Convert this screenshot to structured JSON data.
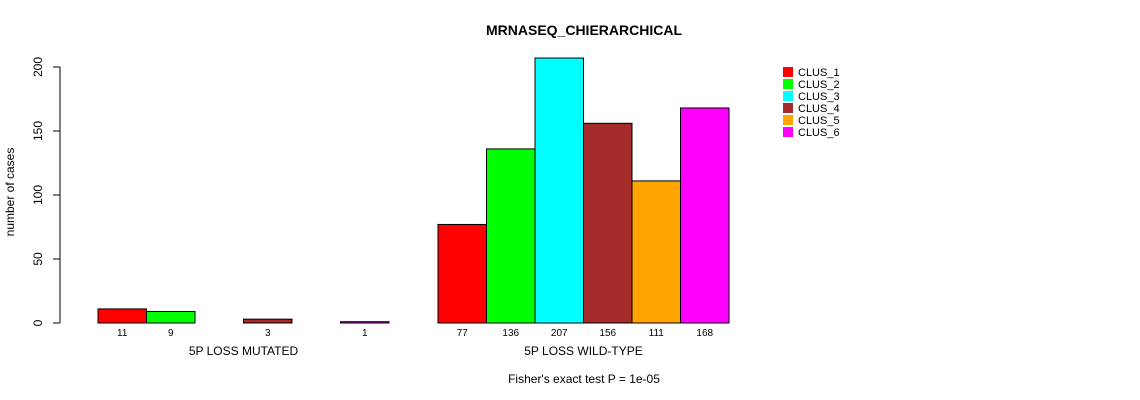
{
  "chart_data": {
    "type": "bar",
    "title": "MRNASEQ_CHIERARCHICAL",
    "ylabel": "number of cases",
    "ylim": [
      0,
      200
    ],
    "yticks": [
      0,
      50,
      100,
      150,
      200
    ],
    "series": [
      {
        "name": "CLUS_1",
        "color": "#ff0000"
      },
      {
        "name": "CLUS_2",
        "color": "#00ff00"
      },
      {
        "name": "CLUS_3",
        "color": "#00ffff"
      },
      {
        "name": "CLUS_4",
        "color": "#a52a2a"
      },
      {
        "name": "CLUS_5",
        "color": "#ffa500"
      },
      {
        "name": "CLUS_6",
        "color": "#ff00ff"
      }
    ],
    "groups": [
      {
        "label": "5P LOSS MUTATED",
        "values": [
          11,
          9,
          0,
          3,
          0,
          1
        ],
        "count_labels": [
          "11",
          "9",
          "",
          "3",
          "",
          "1"
        ]
      },
      {
        "label": "5P LOSS WILD-TYPE",
        "values": [
          77,
          136,
          207,
          156,
          111,
          168
        ],
        "count_labels": [
          "77",
          "136",
          "207",
          "156",
          "111",
          "168"
        ]
      }
    ],
    "footnote": "Fisher's exact test P = 1e-05",
    "legend_position": "top-right",
    "grid": false
  }
}
